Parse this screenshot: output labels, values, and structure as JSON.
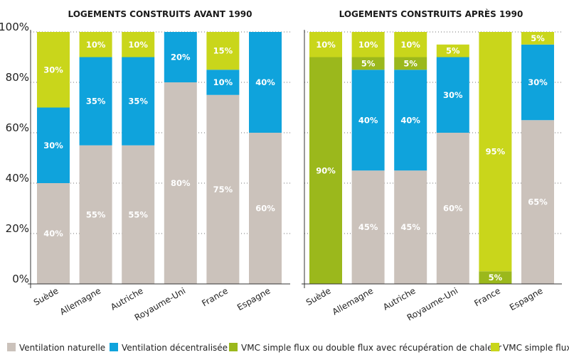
{
  "chart_data": [
    {
      "type": "bar",
      "stacked": true,
      "percent": true,
      "title": "LOGEMENTS CONSTRUITS AVANT 1990",
      "categories": [
        "Suède",
        "Allemagne",
        "Autriche",
        "Royaume-Uni",
        "France",
        "Espagne"
      ],
      "ylim": [
        0,
        100
      ],
      "yticks": [
        "0%",
        "20%",
        "40%",
        "60%",
        "80%",
        "100%"
      ],
      "series": [
        {
          "name": "Ventilation naturelle",
          "color": "#cbc2bb",
          "values": [
            40,
            55,
            55,
            80,
            75,
            60
          ]
        },
        {
          "name": "Ventilation décentralisée",
          "color": "#0fa3dc",
          "values": [
            30,
            35,
            35,
            20,
            10,
            40
          ]
        },
        {
          "name": "VMC simple flux ou double flux avec récupération de chaleur",
          "color": "#9bb81c",
          "values": [
            0,
            0,
            0,
            0,
            0,
            0
          ]
        },
        {
          "name": "VMC simple flux",
          "color": "#c9d61b",
          "values": [
            30,
            10,
            10,
            0,
            15,
            0
          ]
        }
      ]
    },
    {
      "type": "bar",
      "stacked": true,
      "percent": true,
      "title": "LOGEMENTS CONSTRUITS APRÈS 1990",
      "categories": [
        "Suède",
        "Allemagne",
        "Autriche",
        "Royaume-Uni",
        "France",
        "Espagne"
      ],
      "ylim": [
        0,
        100
      ],
      "series": [
        {
          "name": "Ventilation naturelle",
          "color": "#cbc2bb",
          "values": [
            0,
            45,
            45,
            60,
            0,
            65
          ]
        },
        {
          "name": "Ventilation décentralisée",
          "color": "#0fa3dc",
          "values": [
            0,
            40,
            40,
            30,
            0,
            30
          ]
        },
        {
          "name": "VMC simple flux ou double flux avec récupération de chaleur",
          "color": "#9bb81c",
          "values": [
            90,
            5,
            5,
            0,
            5,
            0
          ]
        },
        {
          "name": "VMC simple flux",
          "color": "#c9d61b",
          "values": [
            10,
            10,
            10,
            5,
            95,
            5
          ]
        }
      ]
    }
  ],
  "legend": [
    {
      "label": "Ventilation naturelle",
      "color": "#cbc2bb"
    },
    {
      "label": "Ventilation décentralisée",
      "color": "#0fa3dc"
    },
    {
      "label": "VMC simple flux ou double flux avec récupération de chaleur",
      "color": "#9bb81c"
    },
    {
      "label": "VMC simple flux",
      "color": "#c9d61b"
    }
  ]
}
